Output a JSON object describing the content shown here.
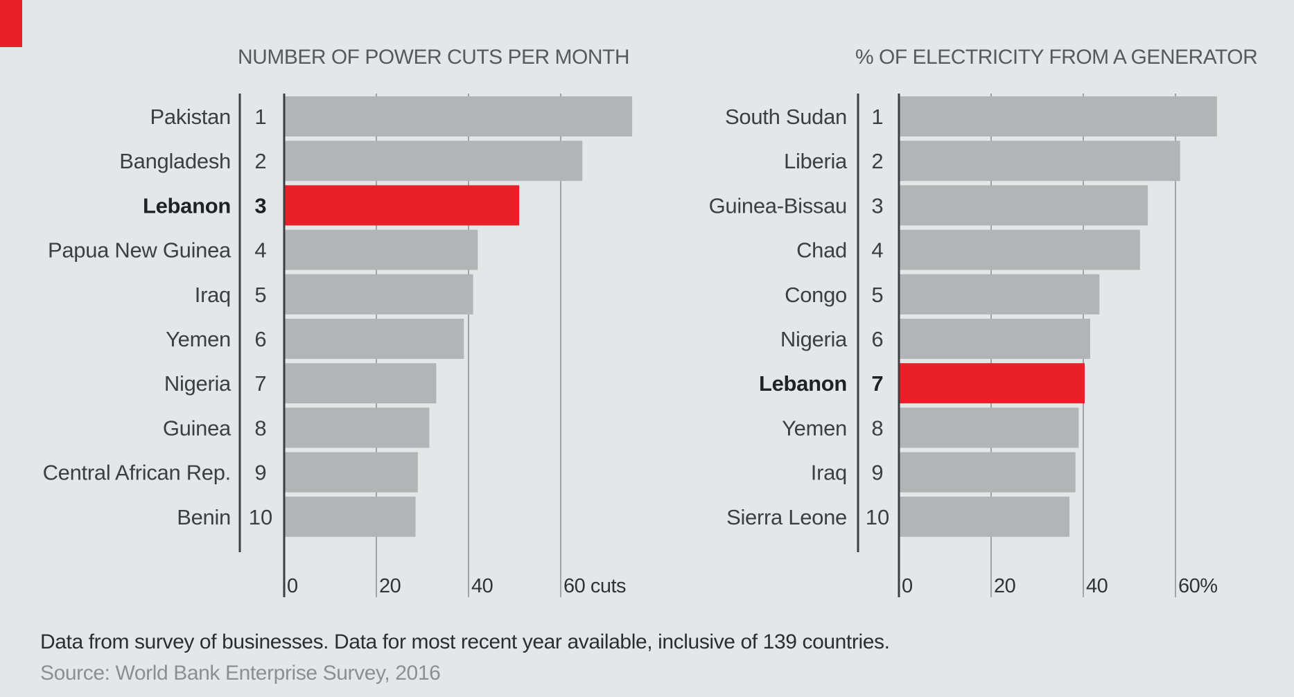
{
  "colors": {
    "background": "#e3e7e7",
    "bar": "#b2b4b5",
    "highlight": "#e8202a",
    "grid": "#9fa3a4",
    "axis": "#3b3f41"
  },
  "footer": {
    "note": "Data from survey of businesses. Data for most recent year available, inclusive of 139 countries.",
    "source": "Source: World Bank Enterprise Survey, 2016"
  },
  "chart_data": [
    {
      "type": "bar",
      "orientation": "horizontal",
      "title": "NUMBER OF POWER CUTS PER MONTH",
      "categories": [
        "Pakistan",
        "Bangladesh",
        "Lebanon",
        "Papua New Guinea",
        "Iraq",
        "Yemen",
        "Nigeria",
        "Guinea",
        "Central African Rep.",
        "Benin"
      ],
      "ranks": [
        "1",
        "2",
        "3",
        "4",
        "5",
        "6",
        "7",
        "8",
        "9",
        "10"
      ],
      "values": [
        75.5,
        64.7,
        51,
        42,
        41,
        39,
        33,
        31.5,
        29,
        28.5
      ],
      "highlight": "Lebanon",
      "xlim": [
        0,
        75
      ],
      "ticks": [
        0,
        20,
        40,
        60
      ],
      "tick_labels": [
        "0",
        "20",
        "40",
        "60 cuts"
      ]
    },
    {
      "type": "bar",
      "orientation": "horizontal",
      "title": "% OF ELECTRICITY FROM A GENERATOR",
      "categories": [
        "South Sudan",
        "Liberia",
        "Guinea-Bissau",
        "Chad",
        "Congo",
        "Nigeria",
        "Lebanon",
        "Yemen",
        "Iraq",
        "Sierra Leone"
      ],
      "ranks": [
        "1",
        "2",
        "3",
        "4",
        "5",
        "6",
        "7",
        "8",
        "9",
        "10"
      ],
      "values": [
        69,
        61,
        54,
        52.3,
        43.5,
        41.5,
        40.3,
        39,
        38.3,
        37
      ],
      "highlight": "Lebanon",
      "xlim": [
        0,
        70
      ],
      "ticks": [
        0,
        20,
        40,
        60
      ],
      "tick_labels": [
        "0",
        "20",
        "40",
        "60%"
      ]
    }
  ]
}
